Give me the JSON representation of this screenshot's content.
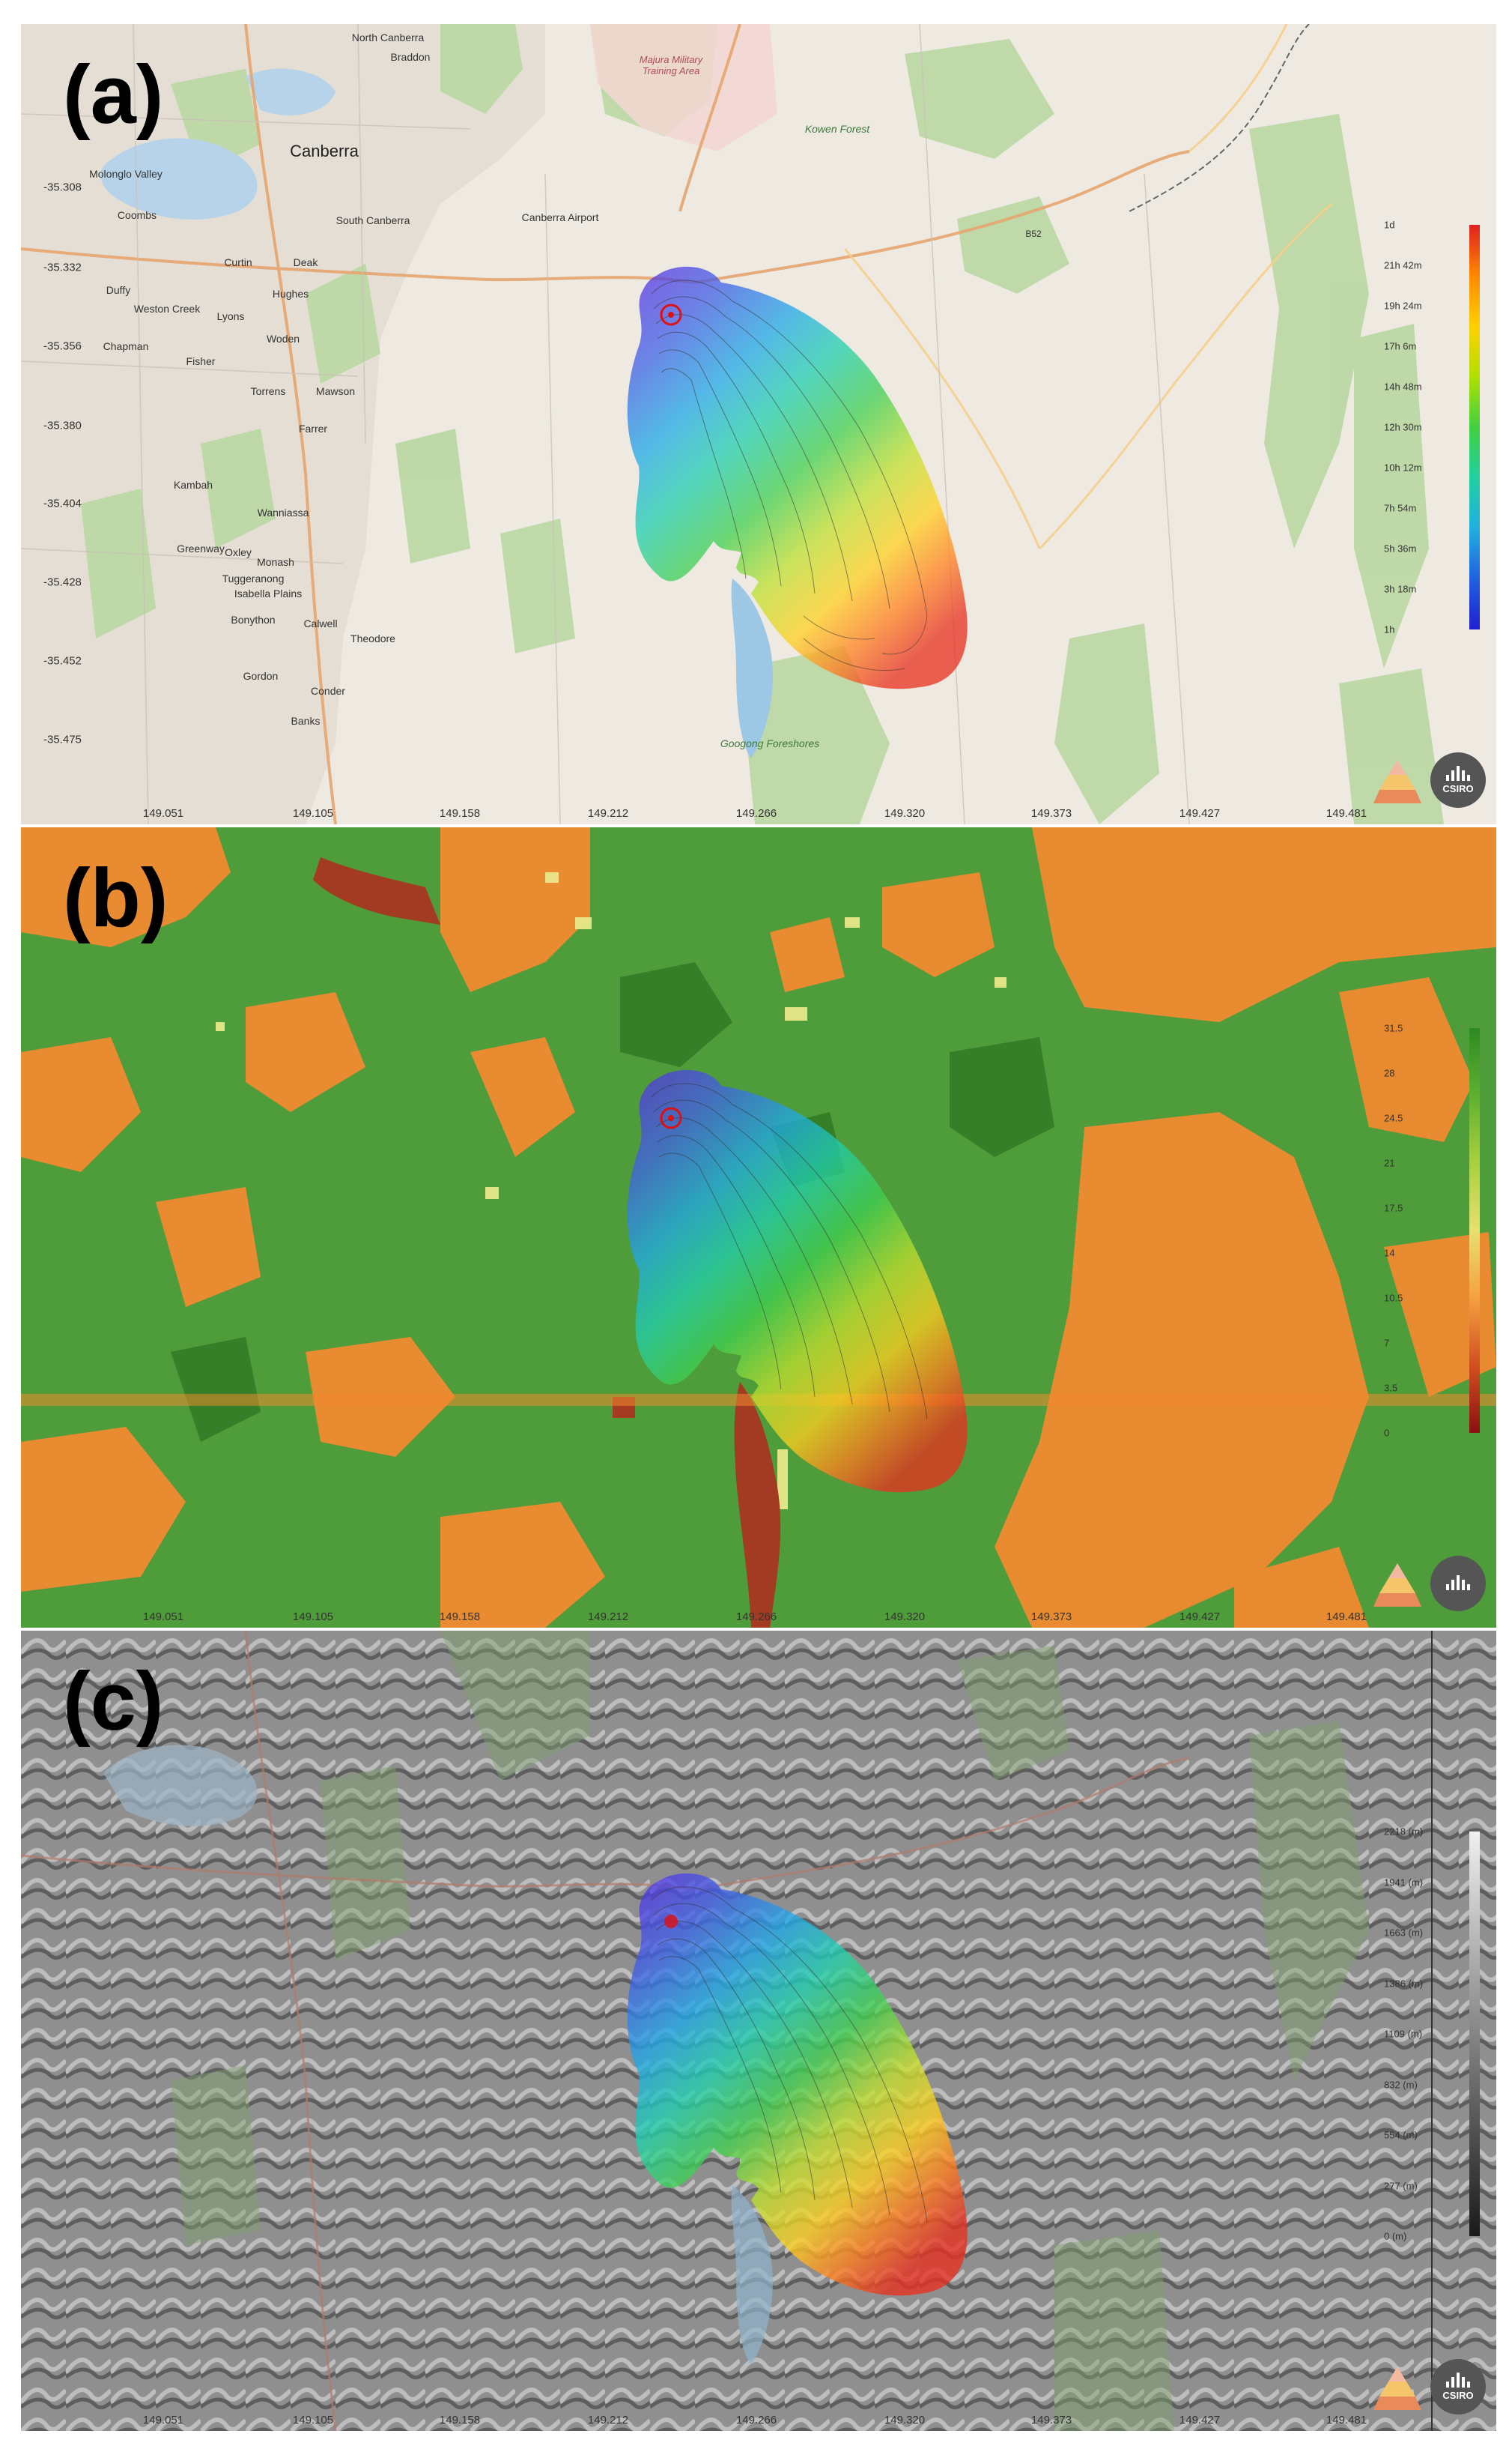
{
  "panels": [
    {
      "label": "(a)",
      "kind": "street",
      "legend": [
        "1d",
        "21h 42m",
        "19h 24m",
        "17h 6m",
        "14h 48m",
        "12h 30m",
        "10h 12m",
        "7h 54m",
        "5h 36m",
        "3h 18m",
        "1h"
      ],
      "legend_colors": [
        "#e02020",
        "#ff8800",
        "#ffd000",
        "#b0e000",
        "#40d040",
        "#20d0a0",
        "#20b0e0",
        "#2060e0",
        "#2020d0"
      ]
    },
    {
      "label": "(b)",
      "kind": "fuel",
      "legend": [
        "31.5",
        "28",
        "24.5",
        "21",
        "17.5",
        "14",
        "10.5",
        "7",
        "3.5",
        "0"
      ],
      "legend_colors": [
        "#2e8b22",
        "#5fb030",
        "#a8d040",
        "#e8e070",
        "#f5a040",
        "#d05020",
        "#8b1010"
      ]
    },
    {
      "label": "(c)",
      "kind": "terrain",
      "legend": [
        "2218 (m)",
        "1941 (m)",
        "1663 (m)",
        "1386 (m)",
        "1109 (m)",
        "832 (m)",
        "554 (m)",
        "277 (m)",
        "0 (m)"
      ],
      "legend_colors": [
        "#f0f0f0",
        "#1a1a1a"
      ]
    }
  ],
  "x_ticks": [
    "149.051",
    "149.105",
    "149.158",
    "149.212",
    "149.266",
    "149.320",
    "149.373",
    "149.427",
    "149.481"
  ],
  "y_ticks": [
    "-35.308",
    "-35.332",
    "-35.356",
    "-35.380",
    "-35.404",
    "-35.428",
    "-35.452",
    "-35.475"
  ],
  "places": {
    "north_canberra": "North Canberra",
    "braddon": "Braddon",
    "majura": "Majura Military Training Area",
    "canberra": "Canberra",
    "molonglo": "Molonglo Valley",
    "south_canberra": "South Canberra",
    "canberra_airport": "Canberra Airport",
    "kowen": "Kowen Forest",
    "weston_creek": "Weston Creek",
    "woden": "Woden",
    "tuggeranong": "Tuggeranong",
    "isabella": "Isabella Plains",
    "googong": "Googong Foreshores",
    "duffy": "Duffy",
    "curtin": "Curtin",
    "deakin": "Deak",
    "hughes": "Hughes",
    "lyons": "Lyons",
    "mawson": "Mawson",
    "kambah": "Kambah",
    "wanniassa": "Wanniassa",
    "oxley": "Oxley",
    "monash": "Monash",
    "calwell": "Calwell",
    "gordon": "Gordon",
    "banks": "Banks",
    "theodore": "Theodore",
    "conder": "Conder",
    "fisher": "Fisher",
    "chapman": "Chapman",
    "coombs": "Coombs",
    "torrens": "Torrens",
    "farrer": "Farrer",
    "greenway": "Greenway",
    "bonython": "Bonython",
    "road_b52": "B52"
  },
  "logo": {
    "text": "CSIRO"
  }
}
